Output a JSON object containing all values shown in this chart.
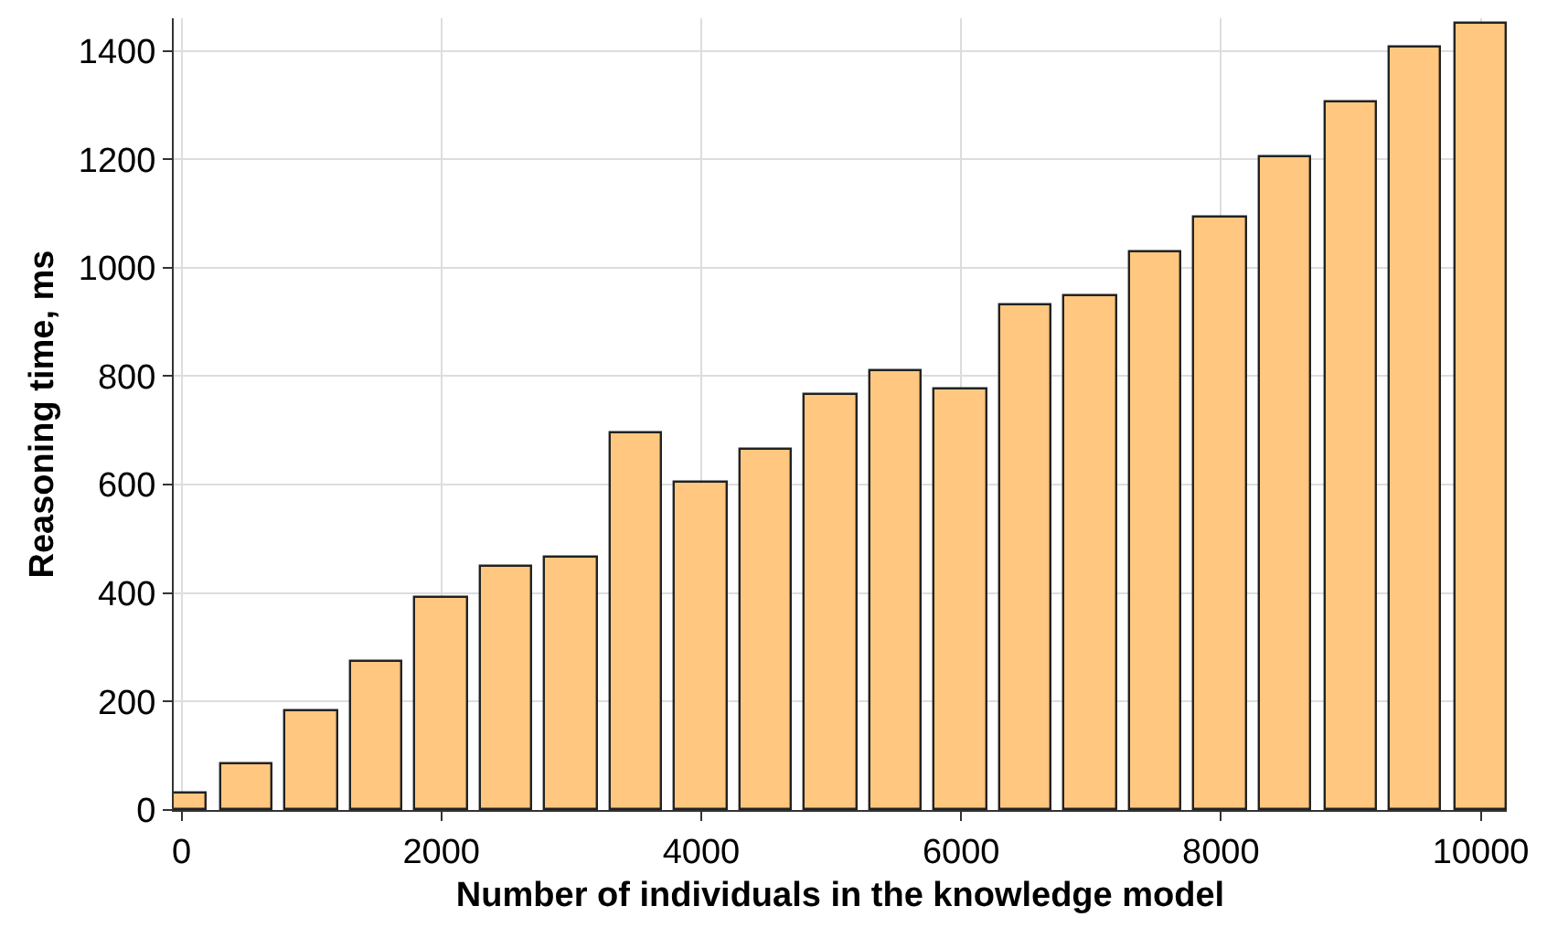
{
  "chart_data": {
    "type": "bar",
    "xlabel": "Number of individuals in the knowledge model",
    "ylabel": "Reasoning time, ms",
    "x": [
      0,
      500,
      1000,
      1500,
      2000,
      2500,
      3000,
      3500,
      4000,
      4500,
      5000,
      5500,
      6000,
      6500,
      7000,
      7500,
      8000,
      8500,
      9000,
      9500,
      10000
    ],
    "values": [
      32,
      85,
      182,
      274,
      392,
      447,
      467,
      693,
      602,
      663,
      764,
      808,
      776,
      931,
      947,
      1028,
      1092,
      1204,
      1306,
      1407,
      1450
    ],
    "color": "#ffc77f",
    "xlim": [
      -60,
      10200
    ],
    "xticks": [
      0,
      2000,
      4000,
      6000,
      8000,
      10000
    ],
    "ylim": [
      0,
      1460
    ],
    "yticks": [
      0,
      200,
      400,
      600,
      800,
      1000,
      1200,
      1400
    ],
    "grid": true
  }
}
